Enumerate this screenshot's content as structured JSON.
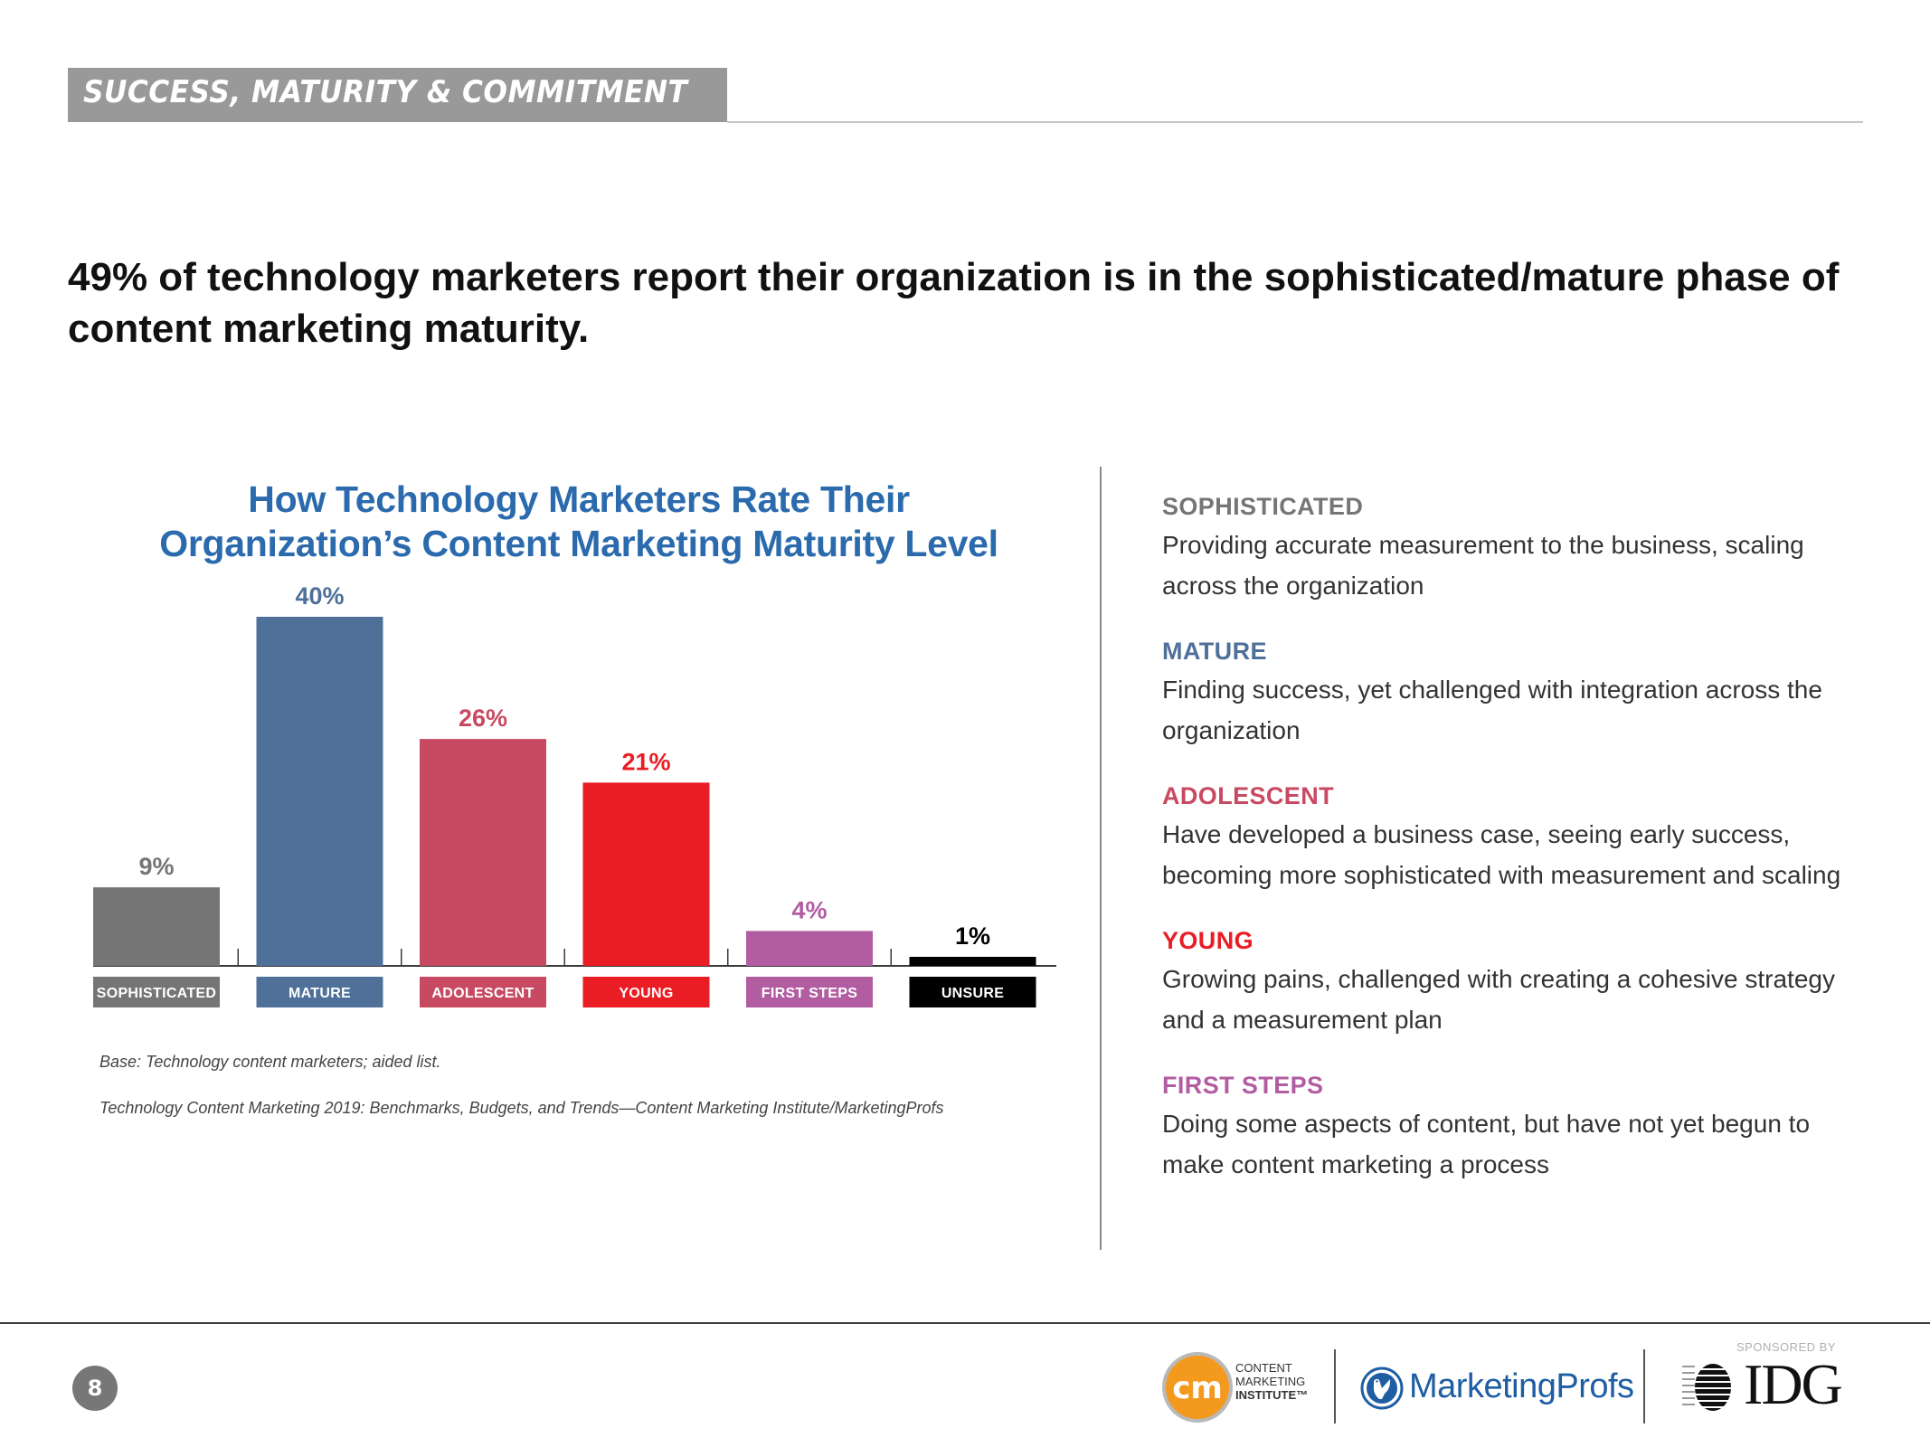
{
  "header": {
    "section_title": "SUCCESS, MATURITY & COMMITMENT"
  },
  "headline": "49% of technology marketers report their organization is in the sophisticated/mature phase of content marketing maturity.",
  "chart_data": {
    "type": "bar",
    "title": "How Technology Marketers Rate Their Organization’s Content Marketing Maturity Level",
    "title_lines": [
      "How Technology Marketers Rate Their",
      "Organization’s Content Marketing Maturity Level"
    ],
    "categories": [
      "SOPHISTICATED",
      "MATURE",
      "ADOLESCENT",
      "YOUNG",
      "FIRST STEPS",
      "UNSURE"
    ],
    "values": [
      9,
      40,
      26,
      21,
      4,
      1
    ],
    "value_labels": [
      "9%",
      "40%",
      "26%",
      "21%",
      "4%",
      "1%"
    ],
    "colors": [
      "#757575",
      "#4f7099",
      "#c84a62",
      "#ea1c24",
      "#b25ca2",
      "#000000"
    ],
    "value_label_colors": [
      "#757575",
      "#4f7099",
      "#c84a62",
      "#ea1c24",
      "#b25ca2",
      "#000000"
    ],
    "unit": "%",
    "xlabel": "",
    "ylabel": "",
    "ylim": [
      0,
      40
    ],
    "grid": false,
    "legend": "none"
  },
  "chart_notes": {
    "base": "Base: Technology content marketers; aided list.",
    "source": "Technology Content Marketing 2019: Benchmarks, Budgets, and Trends—Content Marketing Institute/MarketingProfs"
  },
  "definitions": [
    {
      "term": "SOPHISTICATED",
      "color": "#757575",
      "description": "Providing accurate measurement to the business, scaling across the organization"
    },
    {
      "term": "MATURE",
      "color": "#4f7099",
      "description": "Finding success, yet challenged with integration across the organization"
    },
    {
      "term": "ADOLESCENT",
      "color": "#c84a62",
      "description": "Have developed a business case, seeing early success, becoming more sophisticated with measurement and scaling"
    },
    {
      "term": "YOUNG",
      "color": "#ea1c24",
      "description": "Growing pains, challenged with creating a cohesive strategy and a measurement plan"
    },
    {
      "term": "FIRST STEPS",
      "color": "#b25ca2",
      "description": "Doing some aspects of content, but have not yet begun to make content marketing a process"
    }
  ],
  "footer": {
    "page_number": "8",
    "cmi_logo_glyph": "cm",
    "cmi_lines": [
      "CONTENT",
      "MARKETING",
      "INSTITUTE™"
    ],
    "marketingprofs": "MarketingProfs",
    "sponsored_by": "SPONSORED BY",
    "idg": "IDG"
  },
  "colors": {
    "header_band": "#999999",
    "chart_title": "#2a6aad",
    "cmi_orange": "#f39a1e",
    "marketingprofs_blue": "#1f5ea3"
  }
}
